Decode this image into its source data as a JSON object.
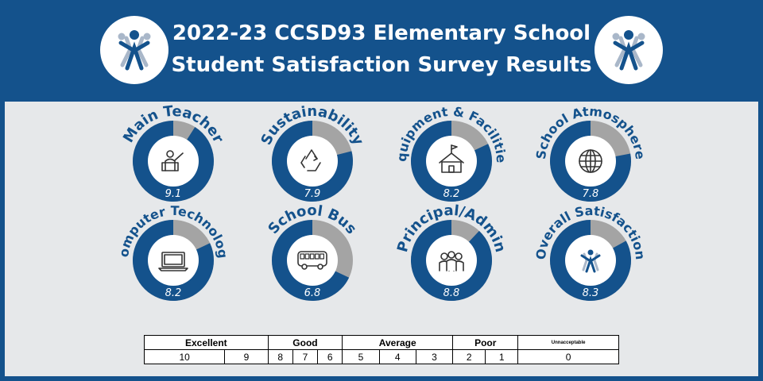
{
  "header": {
    "title_line1": "2022-23 CCSD93 Elementary School",
    "title_line2": "Student Satisfaction Survey Results"
  },
  "logos": [
    {
      "icon": "ccsd93-logo-icon"
    },
    {
      "icon": "ccsd93-logo-icon"
    }
  ],
  "colors": {
    "header_bg": "#14528c",
    "fill": "#14528c",
    "remainder": "#a4a4a4",
    "panel_bg": "#e6e8ea"
  },
  "chart_data": {
    "type": "pie",
    "scale_max": 10,
    "items": [
      {
        "title": "Main Teacher",
        "value": 9.1,
        "value_label": "9.1",
        "icon": "teacher-icon"
      },
      {
        "title": "Sustainability",
        "value": 7.9,
        "value_label": "7.9",
        "icon": "recycle-icon"
      },
      {
        "title": "Equipment & Facilities",
        "value": 8.2,
        "value_label": "8.2",
        "icon": "school-building-icon"
      },
      {
        "title": "School Atmosphere",
        "value": 7.8,
        "value_label": "7.8",
        "icon": "globe-icon"
      },
      {
        "title": "Computer Technology",
        "value": 8.2,
        "value_label": "8.2",
        "icon": "laptop-icon"
      },
      {
        "title": "School Bus",
        "value": 6.8,
        "value_label": "6.8",
        "icon": "bus-icon"
      },
      {
        "title": "Principal/Admin",
        "value": 8.8,
        "value_label": "8.8",
        "icon": "people-icon"
      },
      {
        "title": "Overall Satisfaction",
        "value": 8.3,
        "value_label": "8.3",
        "icon": "ccsd93-logo-icon"
      }
    ]
  },
  "scale": {
    "categories": [
      {
        "label": "Excellent",
        "span": 2
      },
      {
        "label": "Good",
        "span": 3
      },
      {
        "label": "Average",
        "span": 3
      },
      {
        "label": "Poor",
        "span": 2
      },
      {
        "label": "Unnacceptable",
        "span": 1
      }
    ],
    "numbers": [
      "10",
      "9",
      "8",
      "7",
      "6",
      "5",
      "4",
      "3",
      "2",
      "1",
      "0"
    ]
  }
}
